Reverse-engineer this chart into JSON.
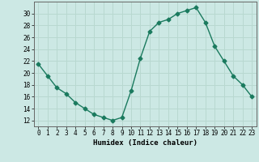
{
  "x": [
    0,
    1,
    2,
    3,
    4,
    5,
    6,
    7,
    8,
    9,
    10,
    11,
    12,
    13,
    14,
    15,
    16,
    17,
    18,
    19,
    20,
    21,
    22,
    23
  ],
  "y": [
    21.5,
    19.5,
    17.5,
    16.5,
    15.0,
    14.0,
    13.0,
    12.5,
    12.0,
    12.5,
    17.0,
    22.5,
    27.0,
    28.5,
    29.0,
    30.0,
    30.5,
    31.0,
    28.5,
    24.5,
    22.0,
    19.5,
    18.0,
    16.0
  ],
  "xlabel": "Humidex (Indice chaleur)",
  "line_color": "#1a7a5e",
  "marker": "D",
  "marker_size": 2.5,
  "bg_color": "#cce8e4",
  "grid_color": "#b8d8d0",
  "ylim": [
    11,
    32
  ],
  "xlim": [
    -0.5,
    23.5
  ],
  "yticks": [
    12,
    14,
    16,
    18,
    20,
    22,
    24,
    26,
    28,
    30
  ],
  "xtick_labels": [
    "0",
    "1",
    "2",
    "3",
    "4",
    "5",
    "6",
    "7",
    "8",
    "9",
    "10",
    "11",
    "12",
    "13",
    "14",
    "15",
    "16",
    "17",
    "18",
    "19",
    "20",
    "21",
    "22",
    "23"
  ]
}
